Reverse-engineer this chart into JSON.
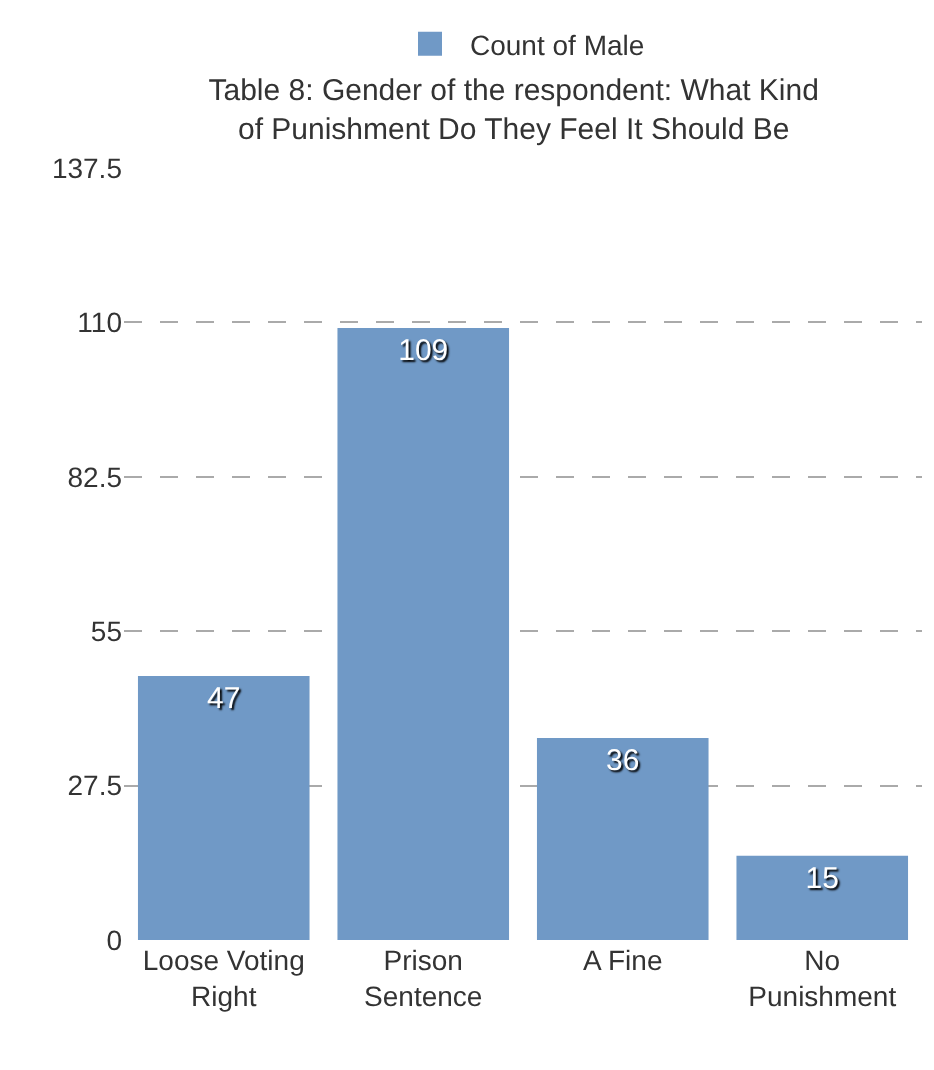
{
  "chart_data": {
    "type": "bar",
    "title": "Table 8: Gender of the respondent: What Kind of Punishment Do They Feel It Should Be",
    "categories": [
      "Loose Voting Right",
      "Prison Sentence",
      "A Fine",
      "No Punishment"
    ],
    "series": [
      {
        "name": "Count of Male",
        "color": "#7099c6",
        "values": [
          47,
          109,
          36,
          15
        ]
      }
    ],
    "ylim": [
      0,
      137.5
    ],
    "yticks": [
      0,
      27.5,
      55,
      82.5,
      110,
      137.5
    ],
    "grid": "y",
    "legend": "top",
    "data_labels": true
  }
}
